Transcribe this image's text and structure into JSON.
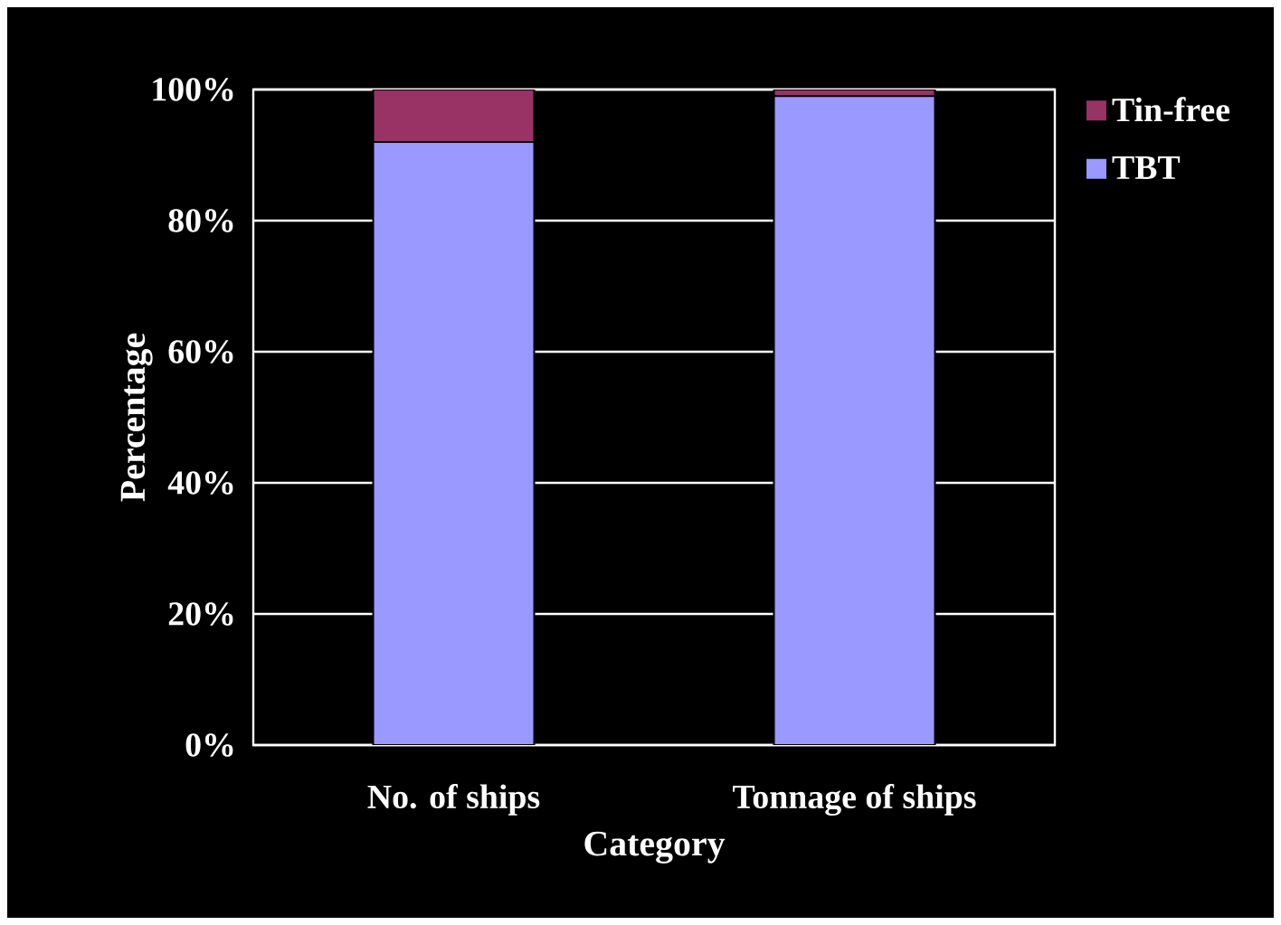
{
  "chart_data": {
    "type": "bar",
    "stacked": true,
    "xlabel": "Category",
    "ylabel": "Percentage",
    "categories": [
      "No. of ships",
      "Tonnage of ships"
    ],
    "series": [
      {
        "name": "TBT",
        "color": "#9999ff",
        "values": [
          92,
          99
        ]
      },
      {
        "name": "Tin-free",
        "color": "#993366",
        "values": [
          8,
          1
        ]
      }
    ],
    "ylim": [
      0,
      100
    ],
    "yticks": [
      {
        "value": 0,
        "label": "0%"
      },
      {
        "value": 20,
        "label": "20%"
      },
      {
        "value": 40,
        "label": "40%"
      },
      {
        "value": 60,
        "label": "60%"
      },
      {
        "value": 80,
        "label": "80%"
      },
      {
        "value": 100,
        "label": "100%"
      }
    ],
    "grid": "y",
    "legend": "top right"
  }
}
